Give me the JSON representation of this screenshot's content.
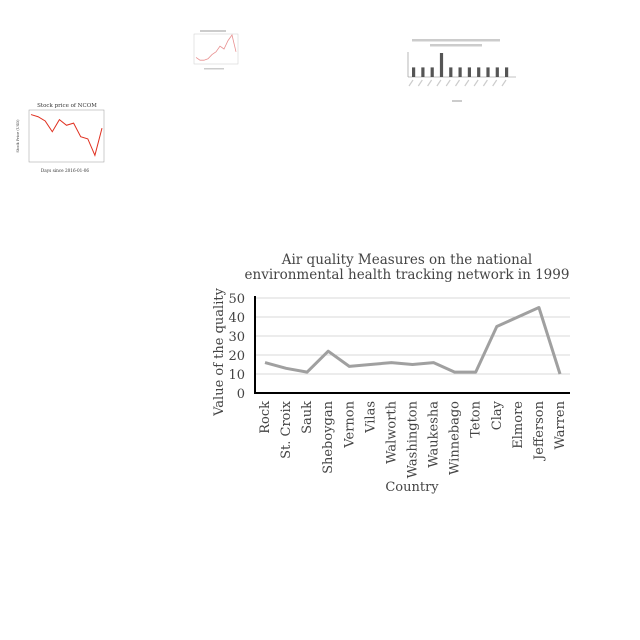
{
  "chart_data": [
    {
      "id": "main",
      "type": "line",
      "title_lines": [
        "Air quality Measures on the national",
        "environmental health tracking network in 1999"
      ],
      "xlabel": "Country",
      "ylabel": "Value of the quality",
      "categories": [
        "Rock",
        "St. Croix",
        "Sauk",
        "Sheboygan",
        "Vernon",
        "Vilas",
        "Walworth",
        "Washington",
        "Waukesha",
        "Winnebago",
        "Teton",
        "Clay",
        "Elmore",
        "Jefferson",
        "Warren"
      ],
      "values": [
        16,
        13,
        11,
        22,
        14,
        15,
        16,
        15,
        16,
        11,
        11,
        35,
        40,
        45,
        10
      ],
      "ylim": [
        0,
        50
      ],
      "yticks": [
        0,
        10,
        20,
        30,
        40,
        50
      ],
      "grid": true,
      "color": "#a0a0a0"
    },
    {
      "id": "ncom",
      "type": "line",
      "title": "Stock price of NCOM",
      "xlabel": "Days since 2016-01-06",
      "ylabel": "Stock Price (USD)",
      "values": [
        58.5,
        58.2,
        57.6,
        56.1,
        57.8,
        57.0,
        57.3,
        55.4,
        55.1,
        52.8,
        56.6
      ],
      "ylim": [
        52,
        59
      ],
      "color": "#e03020"
    },
    {
      "id": "small",
      "type": "line",
      "values": [
        2,
        1,
        1,
        1.5,
        3,
        4,
        6,
        5,
        8,
        10,
        4
      ],
      "color": "#e89090"
    },
    {
      "id": "bar",
      "type": "bar",
      "values": [
        2,
        2,
        2,
        5,
        2,
        2,
        2,
        2,
        2,
        2,
        2
      ],
      "color": "#555555"
    }
  ]
}
